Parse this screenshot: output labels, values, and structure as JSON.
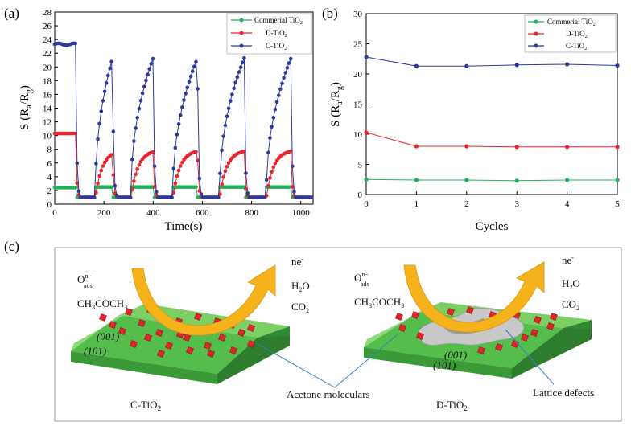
{
  "colors": {
    "green": "#1fb25a",
    "red": "#e8242c",
    "blue": "#2e3a9a",
    "frame": "#000000",
    "arrow": "#f5b21b",
    "slab": "#4cb84a"
  },
  "chart_data": [
    {
      "panel_label": "(a)",
      "type": "line",
      "xlabel": "Time(s)",
      "ylabel": "S (Ra/Rg)",
      "xlim": [
        0,
        1050
      ],
      "ylim": [
        0,
        28
      ],
      "xticks": [
        "0",
        "200",
        "400",
        "600",
        "800",
        "1000"
      ],
      "yticks": [
        "0",
        "2",
        "4",
        "6",
        "8",
        "10",
        "12",
        "14",
        "16",
        "18",
        "20",
        "22",
        "24",
        "26",
        "28"
      ],
      "legend_position": "top-right",
      "pulses": [
        [
          0,
          85
        ],
        [
          165,
          235
        ],
        [
          310,
          400
        ],
        [
          480,
          580
        ],
        [
          670,
          770
        ],
        [
          860,
          960
        ]
      ],
      "baseline": 1.0,
      "first_levels": {
        "C-TiO2": 23.3,
        "D-TiO2": 10.3,
        "Commerial TiO2": 2.4
      },
      "series": [
        {
          "name": "Commerial TiO2",
          "color": "#1fb25a",
          "peak": 2.5
        },
        {
          "name": "D-TiO2",
          "color": "#e8242c",
          "peak": 7.9
        },
        {
          "name": "C-TiO2",
          "color": "#2e3a9a",
          "peak": 21.3
        }
      ]
    },
    {
      "panel_label": "(b)",
      "type": "line",
      "xlabel": "Cycles",
      "ylabel": "S (Ra/Rg)",
      "xlim": [
        0,
        5
      ],
      "ylim": [
        0,
        30
      ],
      "xticks": [
        "0",
        "1",
        "2",
        "3",
        "4",
        "5"
      ],
      "yticks": [
        "0",
        "5",
        "10",
        "15",
        "20",
        "25",
        "30"
      ],
      "legend_position": "top-right",
      "x": [
        0,
        1,
        2,
        3,
        4,
        5
      ],
      "series": [
        {
          "name": "Commerial TiO2",
          "color": "#1fb25a",
          "values": [
            2.5,
            2.4,
            2.4,
            2.3,
            2.4,
            2.4
          ]
        },
        {
          "name": "D-TiO2",
          "color": "#e8242c",
          "values": [
            10.3,
            8.0,
            8.0,
            7.9,
            7.9,
            7.9
          ]
        },
        {
          "name": "C-TiO2",
          "color": "#2e3a9a",
          "values": [
            22.8,
            21.3,
            21.3,
            21.5,
            21.6,
            21.4
          ]
        }
      ]
    }
  ],
  "legend": {
    "commercial": "Commerial TiO",
    "d": "D-TiO",
    "c": "C-TiO",
    "sub": "2"
  },
  "axis_text": {
    "s": "S (R",
    "a": "a",
    "slash": "/R",
    "g": "g",
    "close": ")"
  },
  "schematic": {
    "label": "(c)",
    "oads": "O",
    "oads_sup": "n−",
    "oads_sub": "ads",
    "acetone_formula": "CH3COCH3",
    "acetone_parts": [
      "CH",
      "3",
      "COCH",
      "3"
    ],
    "ne": "ne",
    "ne_sup": "-",
    "h2o": [
      "H",
      "2",
      "O"
    ],
    "co2": [
      "CO",
      "2"
    ],
    "facet_001": "(001)",
    "facet_101": "(101)",
    "c_name": [
      "C-TiO",
      "2"
    ],
    "d_name": [
      "D-TiO",
      "2"
    ],
    "acetone_label": "Acetone moleculars",
    "defect_label": "Lattice defects"
  }
}
